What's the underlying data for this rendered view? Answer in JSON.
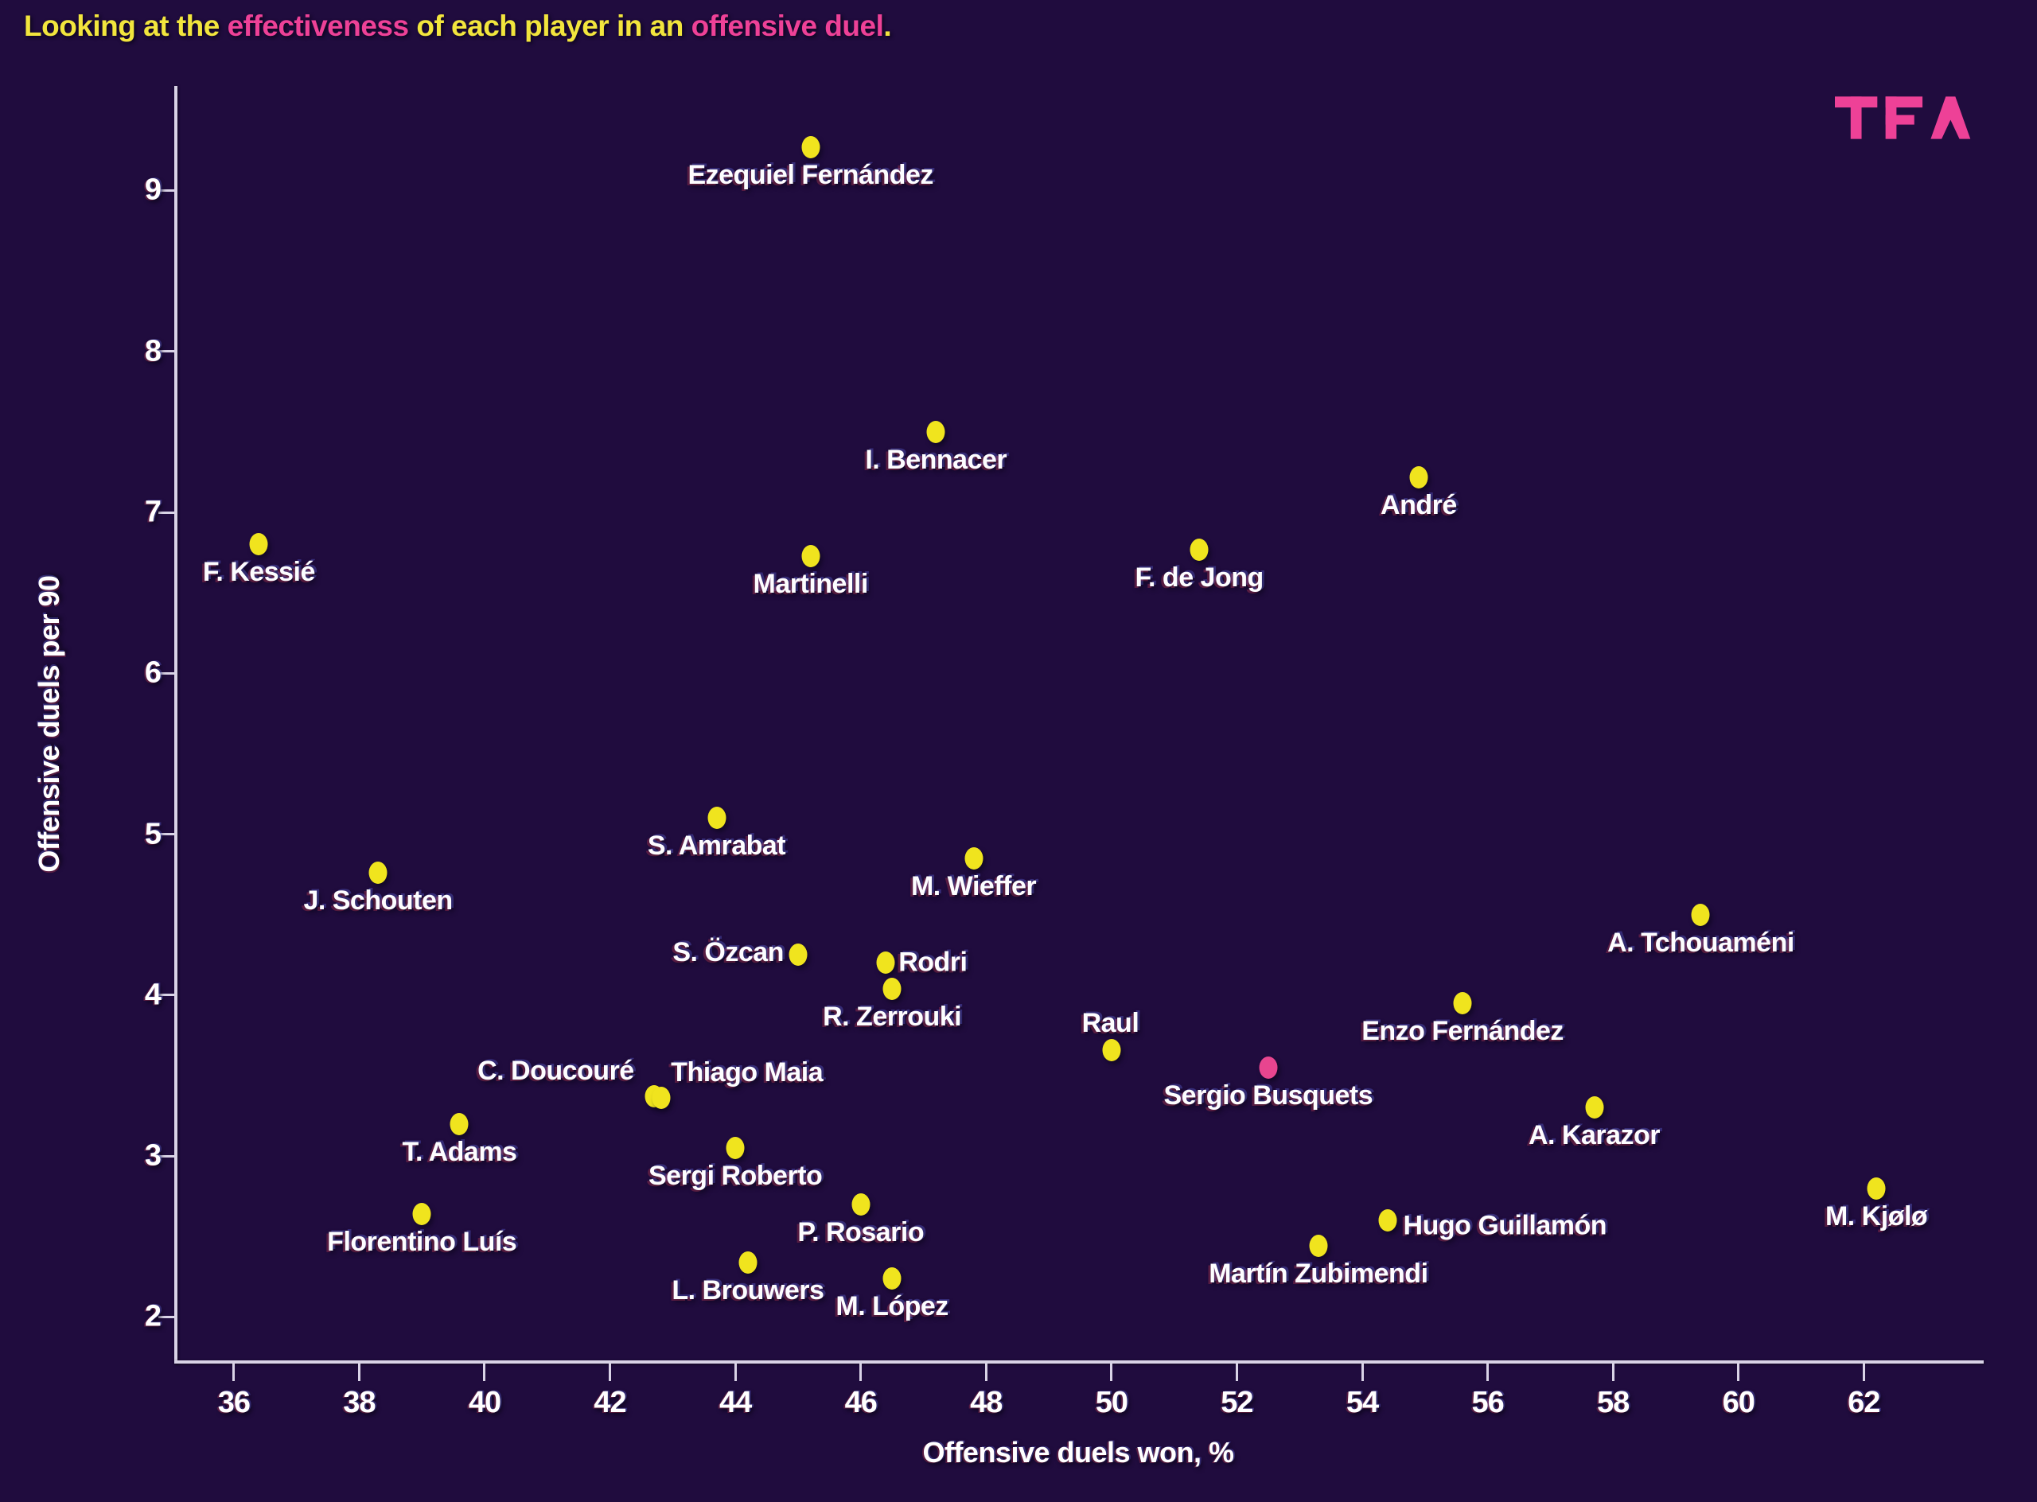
{
  "title": {
    "segments": [
      {
        "text": "Looking at the ",
        "color": "#f2e53d"
      },
      {
        "text": "effectiveness",
        "color": "#ee4197"
      },
      {
        "text": " of each player in an ",
        "color": "#f2e53d"
      },
      {
        "text": "offensive duel",
        "color": "#ee4197"
      },
      {
        "text": ".",
        "color": "#f2e53d"
      }
    ]
  },
  "logo": {
    "text": "TFA",
    "color": "#ee4197"
  },
  "colors": {
    "background": "#200c3e",
    "dot_yellow": "#f0e41e",
    "dot_pink": "#e8458f",
    "spine": "#d9d3e6",
    "text": "#ffffff"
  },
  "chart_data": {
    "type": "scatter",
    "title": "Looking at the effectiveness of each player in an offensive duel.",
    "xlabel": "Offensive duels won, %",
    "ylabel": "Offensive duels per 90",
    "xlim": [
      35.05,
      63.9
    ],
    "ylim": [
      1.73,
      9.65
    ],
    "x_ticks": [
      36,
      38,
      40,
      42,
      44,
      46,
      48,
      50,
      52,
      54,
      56,
      58,
      60,
      62
    ],
    "y_ticks": [
      2,
      3,
      4,
      5,
      6,
      7,
      8,
      9
    ],
    "grid": false,
    "legend": "none",
    "points": [
      {
        "name": "Ezequiel Fernández",
        "x": 45.2,
        "y": 9.27,
        "color": "yellow",
        "label_pos": "below"
      },
      {
        "name": "I. Bennacer",
        "x": 47.2,
        "y": 7.5,
        "color": "yellow",
        "label_pos": "below"
      },
      {
        "name": "André",
        "x": 54.9,
        "y": 7.22,
        "color": "yellow",
        "label_pos": "below"
      },
      {
        "name": "F. Kessié",
        "x": 36.4,
        "y": 6.8,
        "color": "yellow",
        "label_pos": "below"
      },
      {
        "name": "Martinelli",
        "x": 45.2,
        "y": 6.73,
        "color": "yellow",
        "label_pos": "below"
      },
      {
        "name": "F. de Jong",
        "x": 51.4,
        "y": 6.77,
        "color": "yellow",
        "label_pos": "below"
      },
      {
        "name": "S. Amrabat",
        "x": 43.7,
        "y": 5.1,
        "color": "yellow",
        "label_pos": "below"
      },
      {
        "name": "M. Wieffer",
        "x": 47.8,
        "y": 4.85,
        "color": "yellow",
        "label_pos": "below"
      },
      {
        "name": "J. Schouten",
        "x": 38.3,
        "y": 4.76,
        "color": "yellow",
        "label_pos": "below"
      },
      {
        "name": "A. Tchouaméni",
        "x": 59.4,
        "y": 4.5,
        "color": "yellow",
        "label_pos": "below"
      },
      {
        "name": "S. Özcan",
        "x": 45.0,
        "y": 4.25,
        "color": "yellow",
        "label_pos": "left"
      },
      {
        "name": "Rodri",
        "x": 46.4,
        "y": 4.2,
        "color": "yellow",
        "label_pos": "right"
      },
      {
        "name": "R. Zerrouki",
        "x": 46.5,
        "y": 4.04,
        "color": "yellow",
        "label_pos": "below"
      },
      {
        "name": "Enzo Fernández",
        "x": 55.6,
        "y": 3.95,
        "color": "yellow",
        "label_pos": "below"
      },
      {
        "name": "Raul",
        "x": 50.0,
        "y": 3.66,
        "color": "yellow",
        "label_pos": "above"
      },
      {
        "name": "Sergio Busquets",
        "x": 52.5,
        "y": 3.55,
        "color": "pink",
        "label_pos": "below"
      },
      {
        "name": "C. Doucouré",
        "x": 42.7,
        "y": 3.37,
        "color": "yellow",
        "label_pos": "above-left"
      },
      {
        "name": "Thiago Maia",
        "x": 42.82,
        "y": 3.36,
        "color": "yellow",
        "label_pos": "above-right"
      },
      {
        "name": "A. Karazor",
        "x": 57.7,
        "y": 3.3,
        "color": "yellow",
        "label_pos": "below"
      },
      {
        "name": "T. Adams",
        "x": 39.6,
        "y": 3.2,
        "color": "yellow",
        "label_pos": "below"
      },
      {
        "name": "Sergi Roberto",
        "x": 44.0,
        "y": 3.05,
        "color": "yellow",
        "label_pos": "below"
      },
      {
        "name": "M. Kjølø",
        "x": 62.2,
        "y": 2.8,
        "color": "yellow",
        "label_pos": "below"
      },
      {
        "name": "P. Rosario",
        "x": 46.0,
        "y": 2.7,
        "color": "yellow",
        "label_pos": "below"
      },
      {
        "name": "Florentino Luís",
        "x": 39.0,
        "y": 2.64,
        "color": "yellow",
        "label_pos": "below"
      },
      {
        "name": "Hugo Guillamón",
        "x": 54.4,
        "y": 2.6,
        "color": "yellow",
        "label_pos": "right-low"
      },
      {
        "name": "Martín Zubimendi",
        "x": 53.3,
        "y": 2.44,
        "color": "yellow",
        "label_pos": "below"
      },
      {
        "name": "L. Brouwers",
        "x": 44.2,
        "y": 2.34,
        "color": "yellow",
        "label_pos": "below"
      },
      {
        "name": "M. López",
        "x": 46.5,
        "y": 2.24,
        "color": "yellow",
        "label_pos": "below"
      }
    ]
  }
}
